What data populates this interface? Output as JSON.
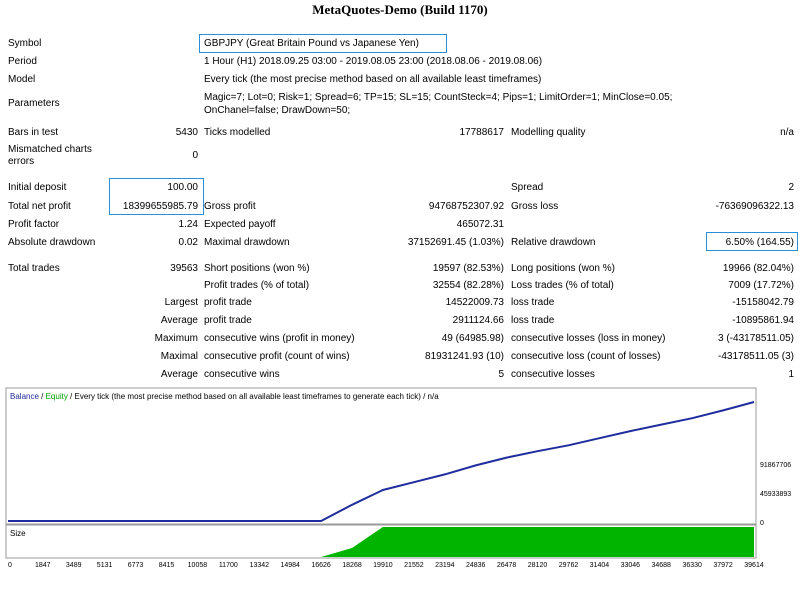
{
  "title": "MetaQuotes-Demo (Build 1170)",
  "rows": {
    "symbol_label": "Symbol",
    "symbol_value": "GBPJPY (Great Britain Pound vs Japanese Yen)",
    "period_label": "Period",
    "period_value": "1 Hour (H1) 2018.09.25 03:00 - 2019.08.05 23:00 (2018.08.06 - 2019.08.06)",
    "model_label": "Model",
    "model_value": "Every tick (the most precise method based on all available least timeframes)",
    "parameters_label": "Parameters",
    "parameters_line1": "Magic=7; Lot=0; Risk=1; Spread=6; TP=15; SL=15; CountSteck=4; Pips=1; LimitOrder=1; MinClose=0.05;",
    "parameters_line2": "OnChanel=false; DrawDown=50;"
  },
  "stats": {
    "bars_label": "Bars in test",
    "bars_value": "5430",
    "ticks_label": "Ticks modelled",
    "ticks_value": "17788617",
    "quality_label": "Modelling quality",
    "quality_value": "n/a",
    "mismatch_label_1": "Mismatched charts",
    "mismatch_label_2": "errors",
    "mismatch_value": "0",
    "initial_deposit_label": "Initial deposit",
    "initial_deposit_value": "100.00",
    "spread_label": "Spread",
    "spread_value": "2",
    "net_profit_label": "Total net profit",
    "net_profit_value": "18399655985.79",
    "gross_profit_label": "Gross profit",
    "gross_profit_value": "94768752307.92",
    "gross_loss_label": "Gross loss",
    "gross_loss_value": "-76369096322.13",
    "profit_factor_label": "Profit factor",
    "profit_factor_value": "1.24",
    "expected_payoff_label": "Expected payoff",
    "expected_payoff_value": "465072.31",
    "abs_drawdown_label": "Absolute drawdown",
    "abs_drawdown_value": "0.02",
    "max_drawdown_label": "Maximal drawdown",
    "max_drawdown_value": "37152691.45 (1.03%)",
    "rel_drawdown_label": "Relative drawdown",
    "rel_drawdown_value": "6.50% (164.55)",
    "total_trades_label": "Total trades",
    "total_trades_value": "39563",
    "short_label": "Short positions (won %)",
    "short_value": "19597 (82.53%)",
    "long_label": "Long positions (won %)",
    "long_value": "19966 (82.04%)",
    "profit_trades_label": "Profit trades (% of total)",
    "profit_trades_value": "32554 (82.28%)",
    "loss_trades_label": "Loss trades (% of total)",
    "loss_trades_value": "7009 (17.72%)",
    "largest_label": "Largest",
    "largest_profit_label": "profit trade",
    "largest_profit_value": "14522009.73",
    "largest_loss_label": "loss trade",
    "largest_loss_value": "-15158042.79",
    "average_label": "Average",
    "average_profit_label": "profit trade",
    "average_profit_value": "2911124.66",
    "average_loss_label": "loss trade",
    "average_loss_value": "-10895861.94",
    "maximum_label": "Maximum",
    "max_wins_label": "consecutive wins (profit in money)",
    "max_wins_value": "49 (64985.98)",
    "max_losses_label": "consecutive losses (loss in money)",
    "max_losses_value": "3 (-43178511.05)",
    "maximal_label": "Maximal",
    "maximal_profit_label": "consecutive profit (count of wins)",
    "maximal_profit_value": "81931241.93 (10)",
    "maximal_loss_label": "consecutive loss (count of losses)",
    "maximal_loss_value": "-43178511.05 (3)",
    "avg_consec_label": "Average",
    "avg_consec_wins_label": "consecutive wins",
    "avg_consec_wins_value": "5",
    "avg_consec_losses_label": "consecutive losses",
    "avg_consec_losses_value": "1"
  },
  "chart_data": {
    "type": "line",
    "legend": {
      "balance": "Balance",
      "slash1": " / ",
      "equity": "Equity",
      "rest": " / Every tick (the most precise method based on all available least timeframes to generate each tick) / n/a"
    },
    "colors": {
      "balance": "#1f2d9e",
      "equity": "#00a000",
      "size_fill": "#00b400"
    },
    "x": [
      0,
      16626,
      18268,
      19910,
      21552,
      23194,
      24836,
      26478,
      28120,
      29762,
      31404,
      33046,
      34688,
      36330,
      37972,
      39614
    ],
    "series": [
      {
        "name": "Balance",
        "values": [
          0,
          0,
          2500000000,
          4800000000,
          6000000000,
          7200000000,
          8600000000,
          9800000000,
          10800000000,
          11700000000,
          12800000000,
          13900000000,
          14900000000,
          15900000000,
          17100000000,
          18399655985.79
        ]
      }
    ],
    "size_panel": {
      "label": "Size",
      "x": [
        0,
        16626,
        18268,
        19910,
        21552,
        39614
      ],
      "values": [
        0,
        0,
        0.3,
        1,
        1,
        1
      ]
    },
    "x_tick_labels": [
      "0",
      "1847",
      "3489",
      "5131",
      "6773",
      "8415",
      "10058",
      "11700",
      "13342",
      "14984",
      "16626",
      "18268",
      "19910",
      "21552",
      "23194",
      "24836",
      "26478",
      "28120",
      "29762",
      "31404",
      "33046",
      "34688",
      "36330",
      "37972",
      "39614"
    ],
    "y_tick_labels": [
      "91867706",
      "45933893",
      "0"
    ],
    "ylim": [
      0,
      18399655985.79
    ]
  }
}
